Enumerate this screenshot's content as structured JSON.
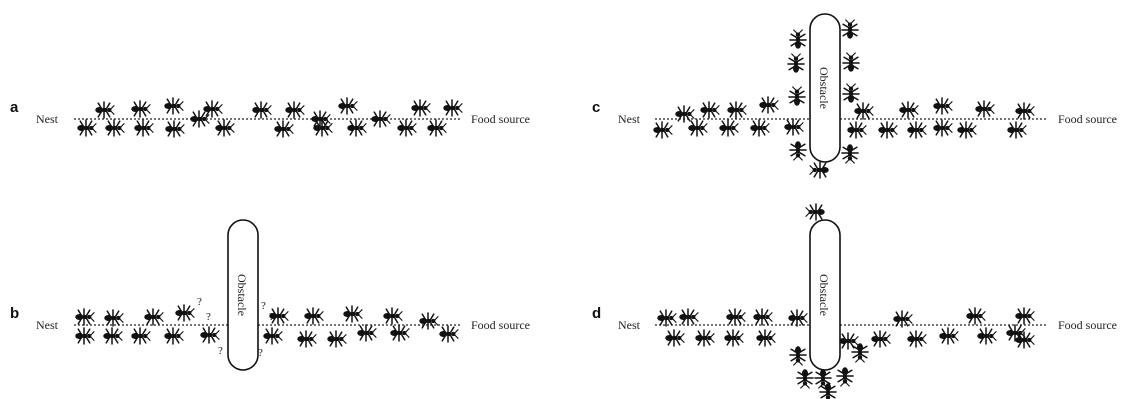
{
  "panels": [
    {
      "letter": "a",
      "nest_label": "Nest",
      "food_label": "Food source",
      "obstacle_label": "",
      "question_marks": []
    },
    {
      "letter": "b",
      "nest_label": "Nest",
      "food_label": "Food source",
      "obstacle_label": "Obstacle",
      "question_marks": [
        "?",
        "?",
        "?",
        "?",
        "?",
        "?"
      ]
    },
    {
      "letter": "c",
      "nest_label": "Nest",
      "food_label": "Food source",
      "obstacle_label": "Obstacle",
      "question_marks": []
    },
    {
      "letter": "d",
      "nest_label": "Nest",
      "food_label": "Food source",
      "obstacle_label": "Obstacle",
      "question_marks": []
    }
  ],
  "colors": {
    "ant": "#111111",
    "line": "#222222",
    "background": "#ffffff"
  }
}
